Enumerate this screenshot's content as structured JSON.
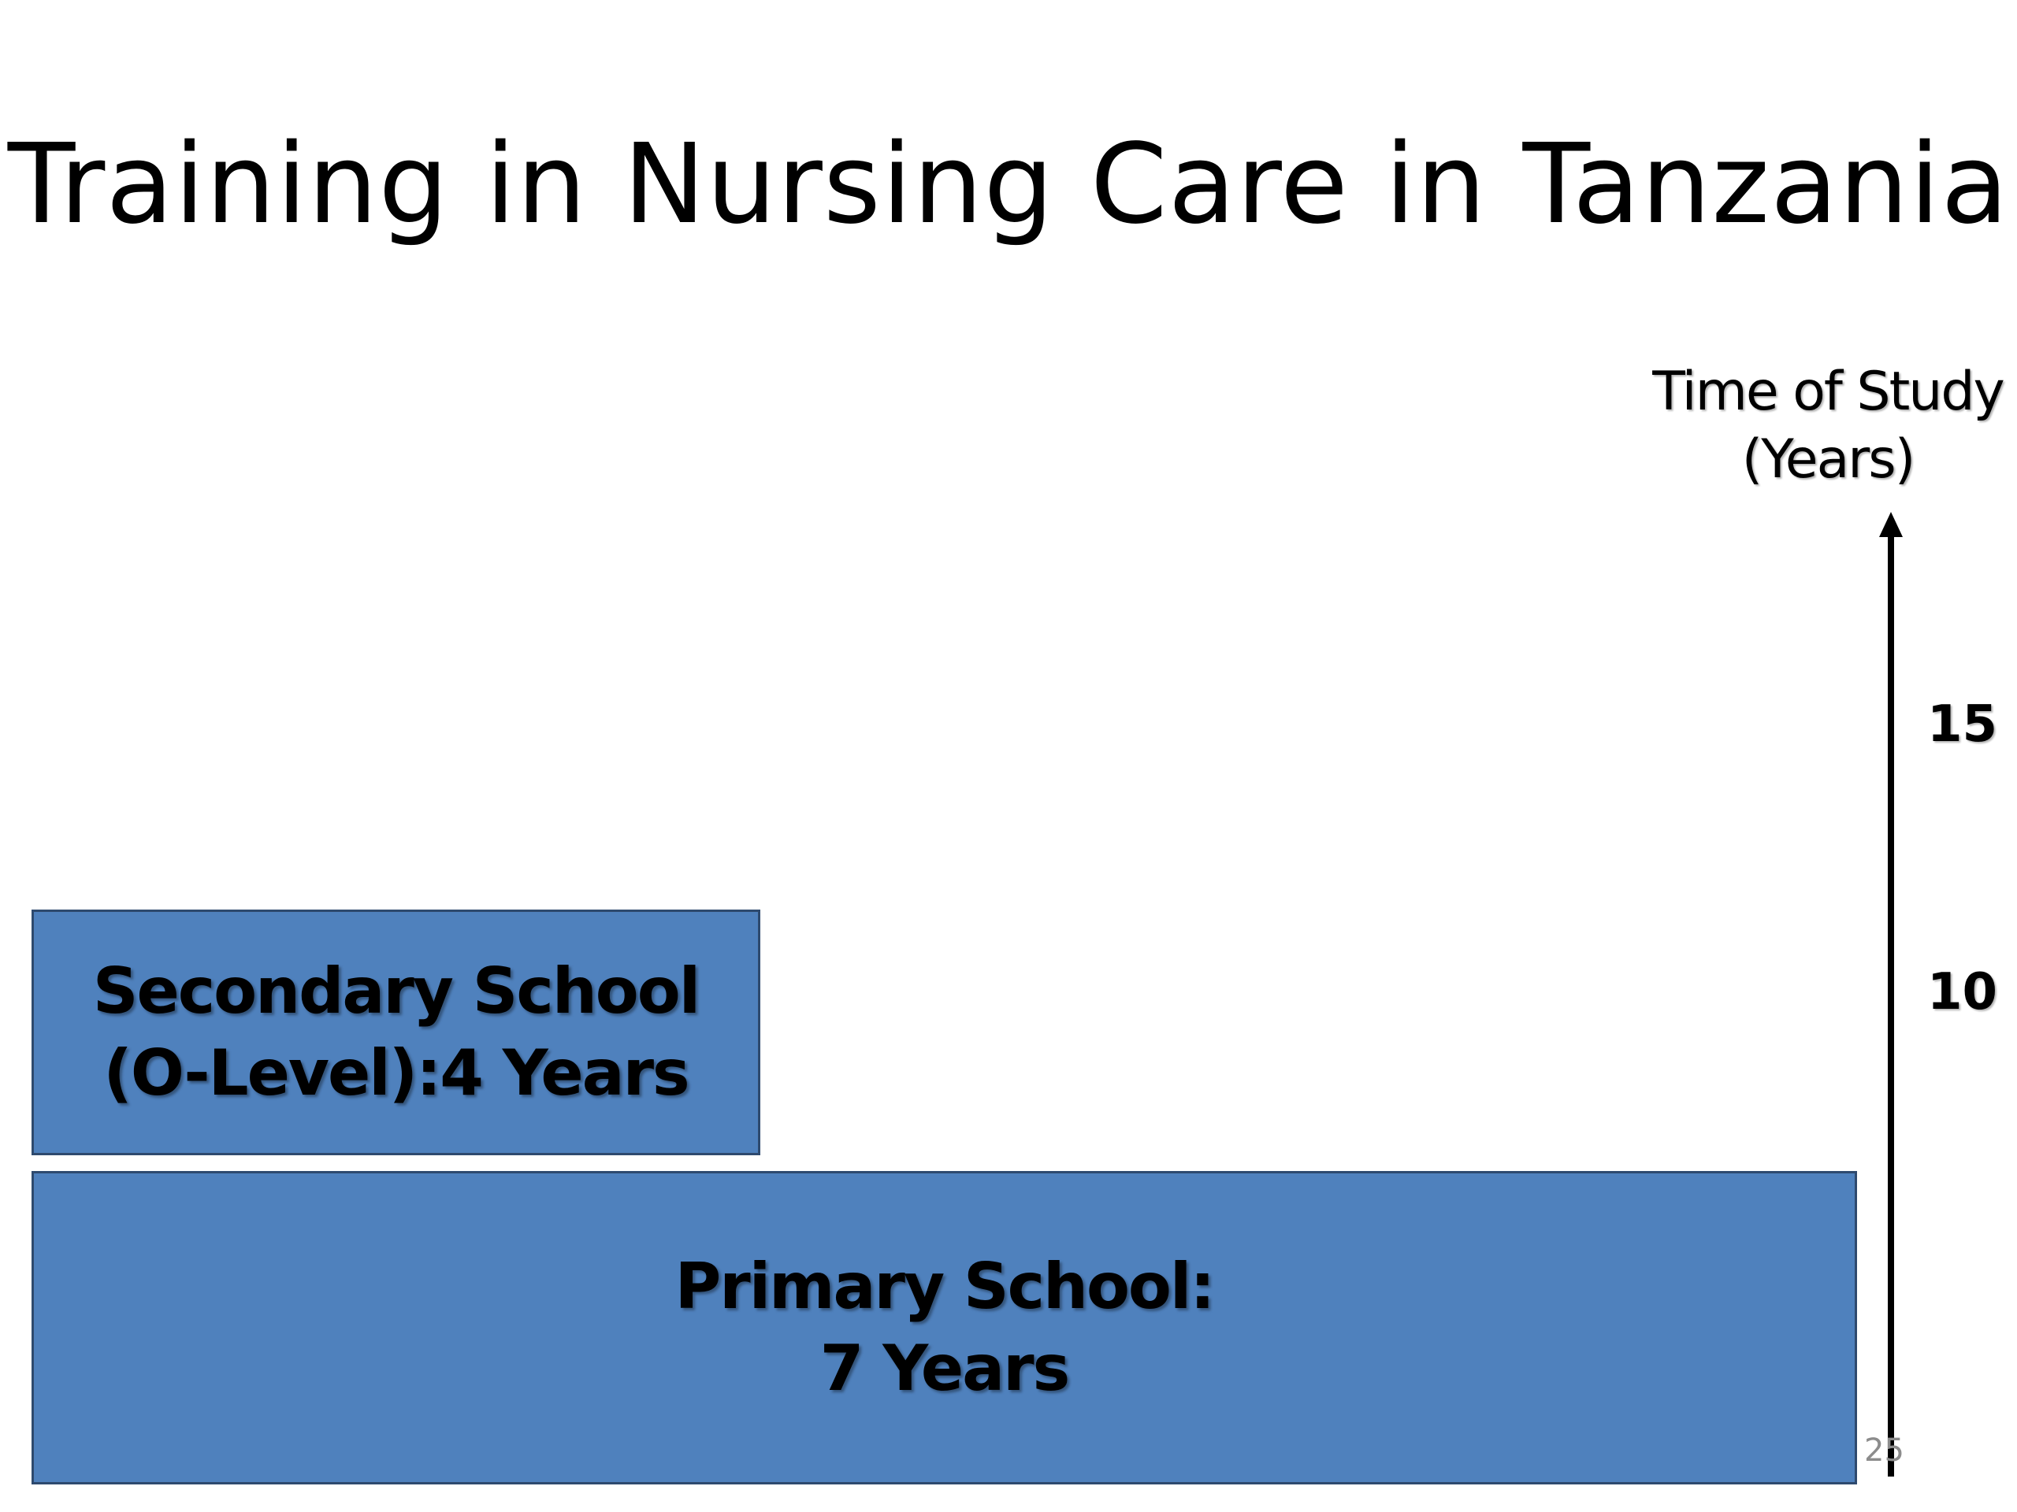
{
  "slide": {
    "title": "Training in Nursing Care in Tanzania",
    "page_number": "25"
  },
  "axis": {
    "title_line1": "Time of Study",
    "title_line2": "(Years)",
    "ticks": [
      "15",
      "10"
    ]
  },
  "blocks": {
    "secondary": {
      "line1": "Secondary School",
      "line2": "(O-Level):4 Years"
    },
    "primary": {
      "line1": "Primary School:",
      "line2": "7 Years"
    }
  },
  "colors": {
    "block_fill": "#4f81bd",
    "block_border": "#2e4a6e",
    "text": "#000000",
    "page_number": "#8c8c8c"
  }
}
